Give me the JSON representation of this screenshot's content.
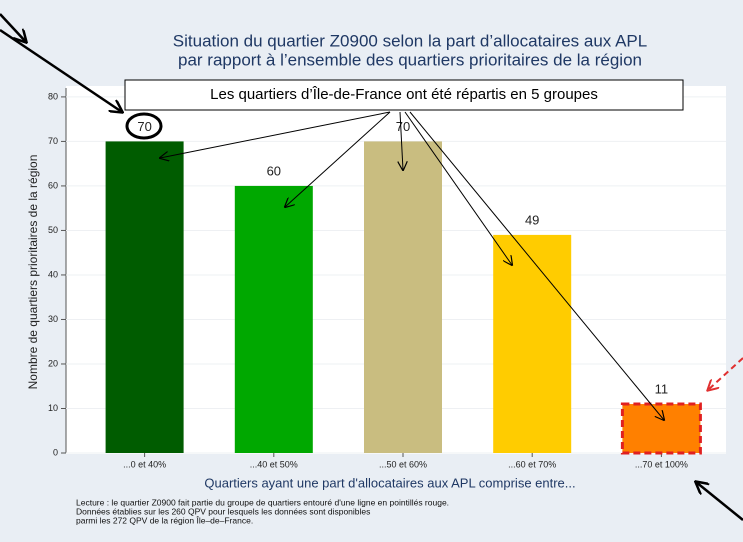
{
  "chart_data": {
    "type": "bar",
    "title": "Situation du quartier Z0900 selon la part d’allocataires aux APL",
    "subtitle": "par rapport à l’ensemble des quartiers prioritaires de la région",
    "annotation": "Les quartiers d’Île-de-France ont été répartis en 5 groupes",
    "categories": [
      "...0 et 40%",
      "...40 et 50%",
      "...50 et 60%",
      "...60 et 70%",
      "...70 et 100%"
    ],
    "values": [
      70,
      60,
      70,
      49,
      11
    ],
    "colors": [
      "#005c00",
      "#00a800",
      "#c9bd80",
      "#ffcc00",
      "#ff8000"
    ],
    "highlight": 4,
    "xlabel": "Quartiers ayant une part d'allocataires aux APL comprise entre...",
    "ylabel": "Nombre de quartiers prioritaires de la région",
    "ylim": [
      0,
      82
    ],
    "yticks": [
      0,
      10,
      20,
      30,
      40,
      50,
      60,
      70,
      80
    ],
    "grid": true,
    "notes": [
      "Lecture : le quartier Z0900 fait partie du groupe de quartiers entouré d'une ligne en pointillés rouge.",
      "Données établies sur les 260 QPV pour lesquels les données sont disponibles",
      "parmi les 272 QPV de la région Île–de–France."
    ]
  }
}
